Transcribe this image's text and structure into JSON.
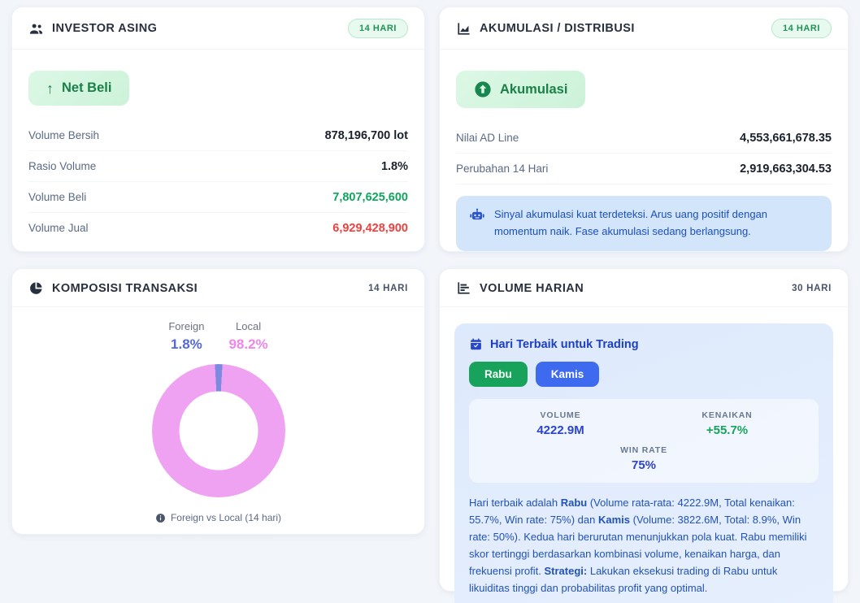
{
  "investor": {
    "title": "INVESTOR ASING",
    "badge": "14 HARI",
    "status_chip": "Net Beli",
    "rows": [
      {
        "label": "Volume Bersih",
        "value": "878,196,700 lot"
      },
      {
        "label": "Rasio Volume",
        "value": "1.8%"
      },
      {
        "label": "Volume Beli",
        "value": "7,807,625,600"
      },
      {
        "label": "Volume Jual",
        "value": "6,929,428,900"
      }
    ]
  },
  "akumulasi": {
    "title": "AKUMULASI / DISTRIBUSI",
    "badge": "14 HARI",
    "status_chip": "Akumulasi",
    "rows": [
      {
        "label": "Nilai AD Line",
        "value": "4,553,661,678.35"
      },
      {
        "label": "Perubahan 14 Hari",
        "value": "2,919,663,304.53"
      }
    ],
    "info": "Sinyal akumulasi kuat terdeteksi. Arus uang positif dengan momentum naik. Fase akumulasi sedang berlangsung."
  },
  "komposisi": {
    "title": "KOMPOSISI TRANSAKSI",
    "period": "14 HARI",
    "legend": [
      {
        "label": "Foreign",
        "value": "1.8%"
      },
      {
        "label": "Local",
        "value": "98.2%"
      }
    ]
  },
  "chart_data": {
    "type": "pie",
    "labels": [
      "Foreign",
      "Local"
    ],
    "values": [
      1.8,
      98.2
    ],
    "colors": [
      "#7b8ade",
      "#f0a2f2"
    ],
    "title": "Foreign vs Local (14 hari)",
    "legend_position": "top",
    "donut": true
  },
  "volume_harian": {
    "title": "VOLUME HARIAN",
    "period": "30 HARI",
    "panel_title": "Hari Terbaik untuk Trading",
    "days": [
      "Rabu",
      "Kamis"
    ],
    "stats": [
      {
        "label": "VOLUME",
        "value": "4222.9M"
      },
      {
        "label": "KENAIKAN",
        "value": "+55.7%"
      },
      {
        "label": "WIN RATE",
        "value": "75%"
      }
    ],
    "analysis": [
      {
        "t": "Hari terbaik adalah ",
        "b": false
      },
      {
        "t": "Rabu",
        "b": true
      },
      {
        "t": " (Volume rata-rata: 4222.9M, Total kenaikan: 55.7%, Win rate: 75%) dan ",
        "b": false
      },
      {
        "t": "Kamis",
        "b": true
      },
      {
        "t": " (Volume: 3822.6M, Total: 8.9%, Win rate: 50%). Kedua hari berurutan menunjukkan pola kuat. Rabu memiliki skor tertinggi berdasarkan kombinasi volume, kenaikan harga, dan frekuensi profit. ",
        "b": false
      },
      {
        "t": "Strategi:",
        "b": true
      },
      {
        "t": " Lakukan eksekusi trading di Rabu untuk likuiditas tinggi dan probabilitas profit yang optimal.",
        "b": false
      }
    ]
  },
  "colors": {
    "positive_green": "#10a55e",
    "negative_red": "#ef4040",
    "foreign_blue": "#7b8ade",
    "local_pink": "#f0a2f2",
    "accent_blue": "#2b43cf",
    "badge_green": "#1f9254"
  }
}
